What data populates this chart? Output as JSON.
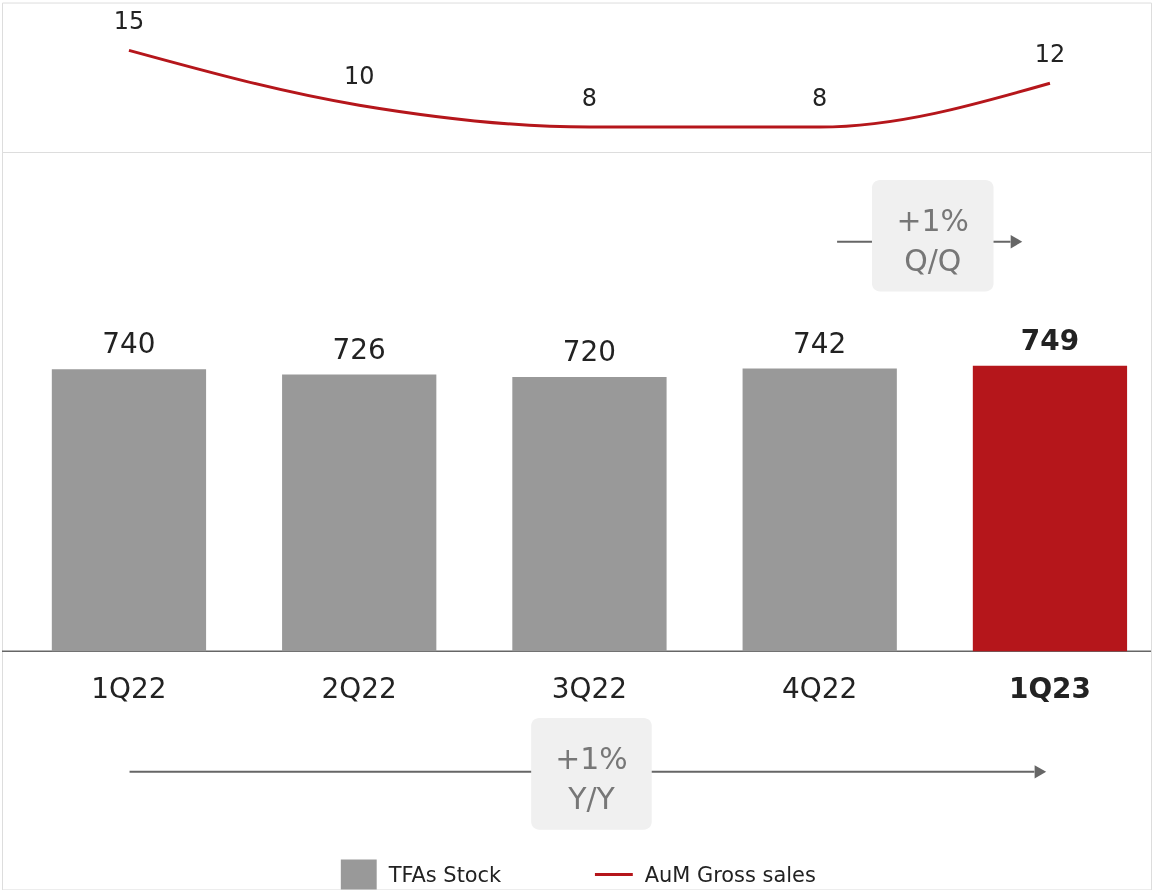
{
  "chart_data": [
    {
      "type": "line",
      "categories": [
        null,
        null,
        null,
        null,
        null
      ],
      "series": [
        {
          "name": "AuM Gross sales",
          "type": "line",
          "color": "#b5161b",
          "values": [
            15,
            10,
            8,
            8,
            12
          ]
        }
      ],
      "data_labels": true,
      "legend": "bottom"
    },
    {
      "type": "bar",
      "categories": [
        "1Q22",
        "2Q22",
        "3Q22",
        "4Q22",
        "1Q23"
      ],
      "series": [
        {
          "name": "TFAs Stock",
          "type": "bar",
          "colors": [
            "#999999",
            "#999999",
            "#999999",
            "#999999",
            "#b5161b"
          ],
          "values": [
            740,
            726,
            720,
            742,
            749
          ]
        }
      ],
      "data_labels": true,
      "legend": "bottom",
      "annotations": [
        "+1% Q/Q",
        "+1% Y/Y"
      ]
    }
  ]
}
